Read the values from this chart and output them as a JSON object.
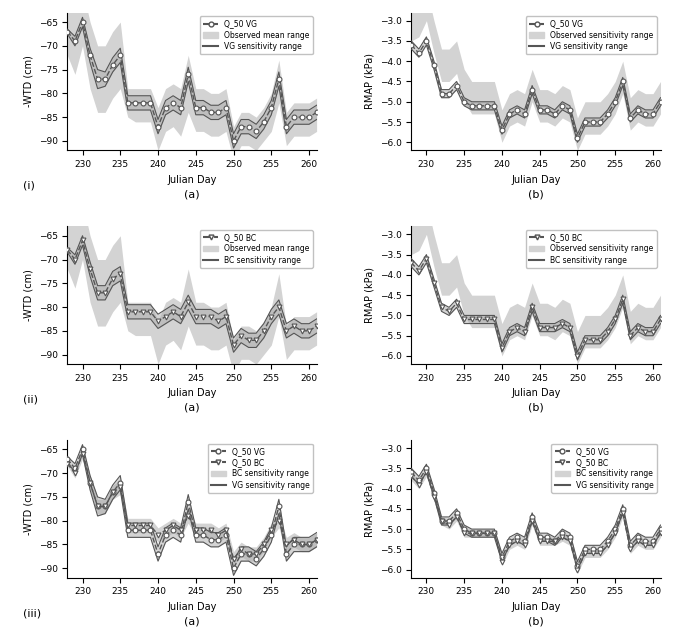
{
  "julian_days": [
    228,
    229,
    230,
    231,
    232,
    233,
    234,
    235,
    236,
    237,
    238,
    239,
    240,
    241,
    242,
    243,
    244,
    245,
    246,
    247,
    248,
    249,
    250,
    251,
    252,
    253,
    254,
    255,
    256,
    257,
    258,
    259,
    260,
    261
  ],
  "WTD_VG_median": [
    -67,
    -69,
    -65,
    -72,
    -77,
    -77,
    -74,
    -72,
    -82,
    -82,
    -82,
    -82,
    -87,
    -83,
    -82,
    -83,
    -76,
    -83,
    -83,
    -84,
    -84,
    -83,
    -90,
    -87,
    -87,
    -88,
    -86,
    -83,
    -77,
    -87,
    -85,
    -85,
    -85,
    -84
  ],
  "WTD_VG_lo": [
    -67.5,
    -70,
    -66,
    -73.5,
    -79,
    -78.5,
    -75.5,
    -73.5,
    -83.5,
    -83.5,
    -83.5,
    -83.5,
    -88.5,
    -84.5,
    -83.5,
    -84.5,
    -77.5,
    -84.5,
    -84.5,
    -85.5,
    -85.5,
    -84.5,
    -91.5,
    -88.5,
    -88.5,
    -89.5,
    -87.5,
    -84.5,
    -78.5,
    -88.5,
    -86.5,
    -86.5,
    -86.5,
    -85.5
  ],
  "WTD_VG_hi": [
    -66.5,
    -68,
    -64,
    -70.5,
    -75,
    -75.5,
    -72.5,
    -70.5,
    -80.5,
    -80.5,
    -80.5,
    -80.5,
    -85.5,
    -81.5,
    -80.5,
    -81.5,
    -74.5,
    -81.5,
    -81.5,
    -82.5,
    -82.5,
    -81.5,
    -88.5,
    -85.5,
    -85.5,
    -86.5,
    -84.5,
    -81.5,
    -75.5,
    -85.5,
    -83.5,
    -83.5,
    -83.5,
    -82.5
  ],
  "WTD_obs_lo": [
    -72,
    -76,
    -70,
    -79,
    -84,
    -84,
    -81,
    -79,
    -85,
    -86,
    -86,
    -86,
    -92,
    -88,
    -87,
    -89,
    -84,
    -88,
    -88,
    -89,
    -89,
    -88,
    -94,
    -91,
    -91,
    -92,
    -90,
    -88,
    -82,
    -91,
    -89,
    -89,
    -89,
    -88
  ],
  "WTD_obs_hi": [
    -60,
    -62,
    -58,
    -65,
    -70,
    -70,
    -67,
    -65,
    -79,
    -79,
    -79,
    -79,
    -83,
    -79,
    -78,
    -79,
    -72,
    -79,
    -79,
    -80,
    -80,
    -79,
    -87,
    -84,
    -84,
    -85,
    -83,
    -80,
    -73,
    -84,
    -82,
    -82,
    -82,
    -81
  ],
  "WTD_BC_median": [
    -68,
    -70,
    -66,
    -72,
    -77,
    -77,
    -74,
    -73,
    -81,
    -81,
    -81,
    -81,
    -83,
    -82,
    -81,
    -82,
    -79,
    -82,
    -82,
    -82,
    -83,
    -82,
    -88,
    -86,
    -87,
    -87,
    -85,
    -82,
    -80,
    -85,
    -84,
    -85,
    -85,
    -84
  ],
  "WTD_BC_lo": [
    -68.5,
    -71,
    -67,
    -73.5,
    -78.5,
    -78.5,
    -75.5,
    -74.5,
    -82.5,
    -82.5,
    -82.5,
    -82.5,
    -84.5,
    -83.5,
    -82.5,
    -83.5,
    -80.5,
    -83.5,
    -83.5,
    -83.5,
    -84.5,
    -83.5,
    -89.5,
    -87.5,
    -88.5,
    -88.5,
    -86.5,
    -83.5,
    -81.5,
    -86.5,
    -85.5,
    -86.5,
    -86.5,
    -85.5
  ],
  "WTD_BC_hi": [
    -67.5,
    -69,
    -65,
    -70.5,
    -75.5,
    -75.5,
    -72.5,
    -71.5,
    -79.5,
    -79.5,
    -79.5,
    -79.5,
    -81.5,
    -80.5,
    -79.5,
    -80.5,
    -77.5,
    -80.5,
    -80.5,
    -80.5,
    -81.5,
    -80.5,
    -86.5,
    -84.5,
    -85.5,
    -85.5,
    -83.5,
    -80.5,
    -78.5,
    -83.5,
    -82.5,
    -83.5,
    -83.5,
    -82.5
  ],
  "RMAP_VG_median": [
    -3.6,
    -3.8,
    -3.5,
    -4.1,
    -4.8,
    -4.8,
    -4.6,
    -5.0,
    -5.1,
    -5.1,
    -5.1,
    -5.1,
    -5.7,
    -5.3,
    -5.2,
    -5.3,
    -4.7,
    -5.2,
    -5.2,
    -5.3,
    -5.1,
    -5.2,
    -5.9,
    -5.5,
    -5.5,
    -5.5,
    -5.3,
    -5.0,
    -4.5,
    -5.4,
    -5.2,
    -5.3,
    -5.3,
    -5.0
  ],
  "RMAP_VG_lo": [
    -3.7,
    -3.9,
    -3.6,
    -4.2,
    -4.9,
    -4.9,
    -4.7,
    -5.1,
    -5.2,
    -5.2,
    -5.2,
    -5.2,
    -5.8,
    -5.4,
    -5.3,
    -5.4,
    -4.8,
    -5.3,
    -5.3,
    -5.4,
    -5.2,
    -5.3,
    -6.0,
    -5.6,
    -5.6,
    -5.6,
    -5.4,
    -5.1,
    -4.6,
    -5.5,
    -5.3,
    -5.4,
    -5.4,
    -5.1
  ],
  "RMAP_VG_hi": [
    -3.5,
    -3.7,
    -3.4,
    -4.0,
    -4.7,
    -4.7,
    -4.5,
    -4.9,
    -5.0,
    -5.0,
    -5.0,
    -5.0,
    -5.6,
    -5.2,
    -5.1,
    -5.2,
    -4.6,
    -5.1,
    -5.1,
    -5.2,
    -5.0,
    -5.1,
    -5.8,
    -5.4,
    -5.4,
    -5.4,
    -5.2,
    -4.9,
    -4.4,
    -5.3,
    -5.1,
    -5.2,
    -5.2,
    -4.9
  ],
  "RMAP_obs_lo": [
    -3.5,
    -3.4,
    -3.0,
    -3.8,
    -4.5,
    -4.5,
    -4.3,
    -5.0,
    -5.3,
    -5.3,
    -5.3,
    -5.3,
    -6.0,
    -5.6,
    -5.5,
    -5.6,
    -5.0,
    -5.5,
    -5.5,
    -5.6,
    -5.4,
    -5.5,
    -6.2,
    -5.8,
    -5.8,
    -5.8,
    -5.6,
    -5.3,
    -4.8,
    -5.7,
    -5.5,
    -5.6,
    -5.6,
    -5.3
  ],
  "RMAP_obs_hi": [
    -2.7,
    -2.6,
    -2.2,
    -3.0,
    -3.7,
    -3.7,
    -3.5,
    -4.2,
    -4.5,
    -4.5,
    -4.5,
    -4.5,
    -5.2,
    -4.8,
    -4.7,
    -4.8,
    -4.2,
    -4.7,
    -4.7,
    -4.8,
    -4.6,
    -4.7,
    -5.4,
    -5.0,
    -5.0,
    -5.0,
    -4.8,
    -4.5,
    -4.0,
    -4.9,
    -4.7,
    -4.8,
    -4.8,
    -4.5
  ],
  "RMAP_BC_median": [
    -3.7,
    -3.9,
    -3.6,
    -4.2,
    -4.8,
    -4.9,
    -4.7,
    -5.1,
    -5.1,
    -5.1,
    -5.1,
    -5.1,
    -5.8,
    -5.4,
    -5.3,
    -5.4,
    -4.8,
    -5.3,
    -5.3,
    -5.3,
    -5.2,
    -5.3,
    -6.0,
    -5.6,
    -5.6,
    -5.6,
    -5.4,
    -5.1,
    -4.6,
    -5.5,
    -5.3,
    -5.4,
    -5.4,
    -5.1
  ],
  "RMAP_BC_lo": [
    -3.8,
    -4.0,
    -3.7,
    -4.3,
    -4.9,
    -5.0,
    -4.8,
    -5.2,
    -5.2,
    -5.2,
    -5.2,
    -5.2,
    -5.9,
    -5.5,
    -5.4,
    -5.5,
    -4.9,
    -5.4,
    -5.4,
    -5.4,
    -5.3,
    -5.4,
    -6.1,
    -5.7,
    -5.7,
    -5.7,
    -5.5,
    -5.2,
    -4.7,
    -5.6,
    -5.4,
    -5.5,
    -5.5,
    -5.2
  ],
  "RMAP_BC_hi": [
    -3.6,
    -3.8,
    -3.5,
    -4.1,
    -4.7,
    -4.8,
    -4.6,
    -5.0,
    -5.0,
    -5.0,
    -5.0,
    -5.0,
    -5.7,
    -5.3,
    -5.2,
    -5.3,
    -4.7,
    -5.2,
    -5.2,
    -5.2,
    -5.1,
    -5.2,
    -5.9,
    -5.5,
    -5.5,
    -5.5,
    -5.3,
    -5.0,
    -4.5,
    -5.4,
    -5.2,
    -5.3,
    -5.3,
    -5.0
  ],
  "xlim": [
    228,
    261
  ],
  "xticks": [
    230,
    235,
    240,
    245,
    250,
    255,
    260
  ],
  "WTD_ylim": [
    -92,
    -63
  ],
  "WTD_yticks": [
    -90,
    -85,
    -80,
    -75,
    -70,
    -65
  ],
  "RMAP_ylim": [
    -6.2,
    -2.8
  ],
  "RMAP_yticks": [
    -6.0,
    -5.5,
    -5.0,
    -4.5,
    -4.0,
    -3.5,
    -3.0
  ],
  "obs_fill_color": "#d3d3d3",
  "sens_fill_color": "#aaaaaa",
  "line_color": "#555555",
  "background_color": "#ffffff",
  "row_labels": [
    "(i)",
    "(ii)",
    "(iii)"
  ],
  "col_label_a": "(a)",
  "col_label_b": "(b)"
}
